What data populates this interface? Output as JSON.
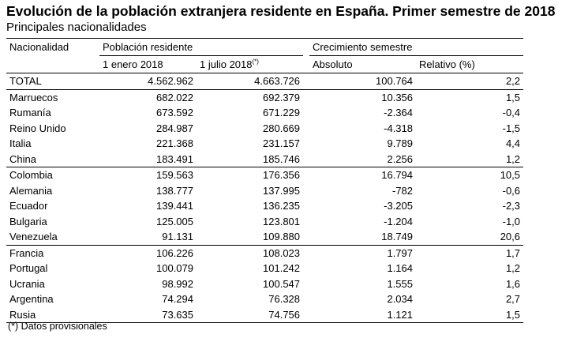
{
  "title": "Evolución de la población extranjera residente en España. Primer semestre de 2018",
  "subtitle": "Principales nacionalidades",
  "headers": {
    "nacionalidad": "Nacionalidad",
    "poblacion": "Población residente",
    "crecimiento": "Crecimiento semestre",
    "enero": "1 enero 2018",
    "julio": "1 julio 2018",
    "julio_mark": "(*)",
    "absoluto": "Absoluto",
    "relativo": "Relativo (%)"
  },
  "total": {
    "label": "TOTAL",
    "enero": "4.562.962",
    "julio": "4.663.726",
    "absoluto": "100.764",
    "relativo": "2,2"
  },
  "rows": [
    {
      "label": "Marruecos",
      "enero": "682.022",
      "julio": "692.379",
      "absoluto": "10.356",
      "relativo": "1,5"
    },
    {
      "label": "Rumanía",
      "enero": "673.592",
      "julio": "671.229",
      "absoluto": "-2.364",
      "relativo": "-0,4"
    },
    {
      "label": "Reino Unido",
      "enero": "284.987",
      "julio": "280.669",
      "absoluto": "-4.318",
      "relativo": "-1,5"
    },
    {
      "label": "Italia",
      "enero": "221.368",
      "julio": "231.157",
      "absoluto": "9.789",
      "relativo": "4,4"
    },
    {
      "label": "China",
      "enero": "183.491",
      "julio": "185.746",
      "absoluto": "2.256",
      "relativo": "1,2"
    },
    {
      "label": "Colombia",
      "enero": "159.563",
      "julio": "176.356",
      "absoluto": "16.794",
      "relativo": "10,5"
    },
    {
      "label": "Alemania",
      "enero": "138.777",
      "julio": "137.995",
      "absoluto": "-782",
      "relativo": "-0,6"
    },
    {
      "label": "Ecuador",
      "enero": "139.441",
      "julio": "136.235",
      "absoluto": "-3.205",
      "relativo": "-2,3"
    },
    {
      "label": "Bulgaria",
      "enero": "125.005",
      "julio": "123.801",
      "absoluto": "-1.204",
      "relativo": "-1,0"
    },
    {
      "label": "Venezuela",
      "enero": "91.131",
      "julio": "109.880",
      "absoluto": "18.749",
      "relativo": "20,6"
    },
    {
      "label": "Francia",
      "enero": "106.226",
      "julio": "108.023",
      "absoluto": "1.797",
      "relativo": "1,7"
    },
    {
      "label": "Portugal",
      "enero": "100.079",
      "julio": "101.242",
      "absoluto": "1.164",
      "relativo": "1,2"
    },
    {
      "label": "Ucrania",
      "enero": "98.992",
      "julio": "100.547",
      "absoluto": "1.555",
      "relativo": "1,6"
    },
    {
      "label": "Argentina",
      "enero": "74.294",
      "julio": "76.328",
      "absoluto": "2.034",
      "relativo": "2,7"
    },
    {
      "label": "Rusia",
      "enero": "73.635",
      "julio": "74.756",
      "absoluto": "1.121",
      "relativo": "1,5"
    }
  ],
  "footnote": "(*) Datos provisionales"
}
